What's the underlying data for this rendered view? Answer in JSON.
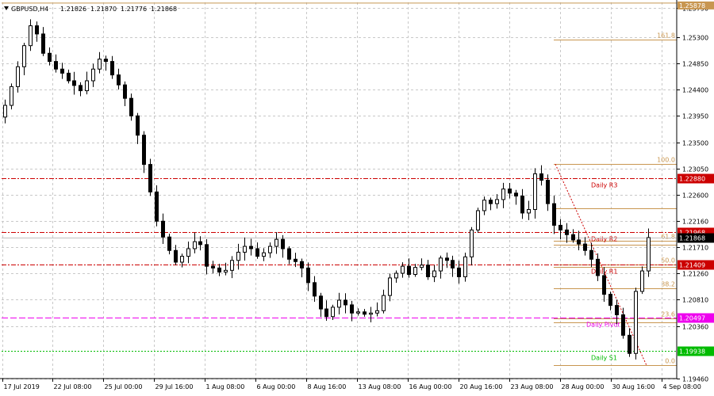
{
  "symbol_header": {
    "symbol": "GBPUSD,H4",
    "open": "1.21826",
    "high": "1.21870",
    "low": "1.21776",
    "close": "1.21868"
  },
  "colors": {
    "background": "#ffffff",
    "grid": "#c8c8c8",
    "candle": "#000000",
    "fib": "#c89650",
    "pivot_resistance": "#cc0000",
    "pivot_main": "#ee00ee",
    "pivot_support": "#00bb00"
  },
  "chart_data": {
    "type": "candlestick",
    "ylim": [
      1.1946,
      1.2589
    ],
    "price_ticks": [
      "1.25790",
      "1.25300",
      "1.24850",
      "1.24400",
      "1.23950",
      "1.23500",
      "1.23050",
      "1.22600",
      "1.22160",
      "1.21710",
      "1.21260",
      "1.20810",
      "1.20360",
      "1.19460"
    ],
    "time_ticks": [
      "17 Jul 2019",
      "22 Jul 08:00",
      "25 Jul 00:00",
      "29 Jul 16:00",
      "1 Aug 08:00",
      "6 Aug 00:00",
      "8 Aug 16:00",
      "13 Aug 08:00",
      "16 Aug 00:00",
      "20 Aug 16:00",
      "23 Aug 08:00",
      "28 Aug 00:00",
      "30 Aug 16:00",
      "4 Sep 08:00"
    ],
    "closes": [
      1.2413,
      1.2445,
      1.2479,
      1.2515,
      1.2549,
      1.2535,
      1.2502,
      1.2488,
      1.2475,
      1.2468,
      1.2455,
      1.2447,
      1.2438,
      1.2455,
      1.2475,
      1.2492,
      1.2488,
      1.2465,
      1.2448,
      1.2425,
      1.2395,
      1.2362,
      1.2312,
      1.2265,
      1.2215,
      1.2188,
      1.2165,
      1.2145,
      1.2155,
      1.2168,
      1.218,
      1.2175,
      1.2138,
      1.2135,
      1.2128,
      1.2131,
      1.2148,
      1.2162,
      1.2172,
      1.2168,
      1.2155,
      1.2161,
      1.2172,
      1.2184,
      1.2168,
      1.215,
      1.2146,
      1.2135,
      1.211,
      1.2087,
      1.2065,
      1.2052,
      1.2068,
      1.208,
      1.2072,
      1.2058,
      1.206,
      1.2056,
      1.2058,
      1.2062,
      1.2088,
      1.2118,
      1.2126,
      1.2138,
      1.2124,
      1.2136,
      1.214,
      1.212,
      1.213,
      1.2152,
      1.2148,
      1.2135,
      1.212,
      1.2154,
      1.22,
      1.2233,
      1.2251,
      1.2245,
      1.2252,
      1.227,
      1.2263,
      1.2258,
      1.2229,
      1.2235,
      1.2296,
      1.2285,
      1.2245,
      1.2208,
      1.22,
      1.2192,
      1.2183,
      1.2176,
      1.2165,
      1.215,
      1.2122,
      1.209,
      1.2071,
      1.2055,
      1.202,
      1.1989,
      1.2095,
      1.213,
      1.2187
    ],
    "pivot_lines": [
      {
        "name": "Daily R3",
        "price": 1.2288,
        "label": "1.22880",
        "style": "resistance"
      },
      {
        "name": "Daily R2",
        "price": 1.21968,
        "label": "1.21968",
        "style": "resistance"
      },
      {
        "name": "Daily R1",
        "price": 1.21409,
        "label": "1.21409",
        "style": "resistance"
      },
      {
        "name": "Daily Pivot",
        "price": 1.20497,
        "label": "1.20497",
        "style": "main"
      },
      {
        "name": "Daily S1",
        "price": 1.19938,
        "label": "1.19938",
        "style": "support"
      }
    ],
    "current_price": {
      "price": 1.21868,
      "label": "1.21868"
    },
    "top_level": {
      "price": 1.25878,
      "label": "1.25878"
    },
    "fib_levels": [
      {
        "label": "161.8",
        "price": 1.25252
      },
      {
        "label": "100.0",
        "price": 1.23125
      },
      {
        "label": "61.8",
        "price": 1.2181
      },
      {
        "label": "50.0",
        "price": 1.21403
      },
      {
        "label": "38.2",
        "price": 1.20997
      },
      {
        "label": "23.6",
        "price": 1.20495
      },
      {
        "label": "0.0",
        "price": 1.19685
      }
    ],
    "fib_extra_lines": [
      1.22372,
      1.21748,
      1.21369,
      1.20424
    ]
  }
}
